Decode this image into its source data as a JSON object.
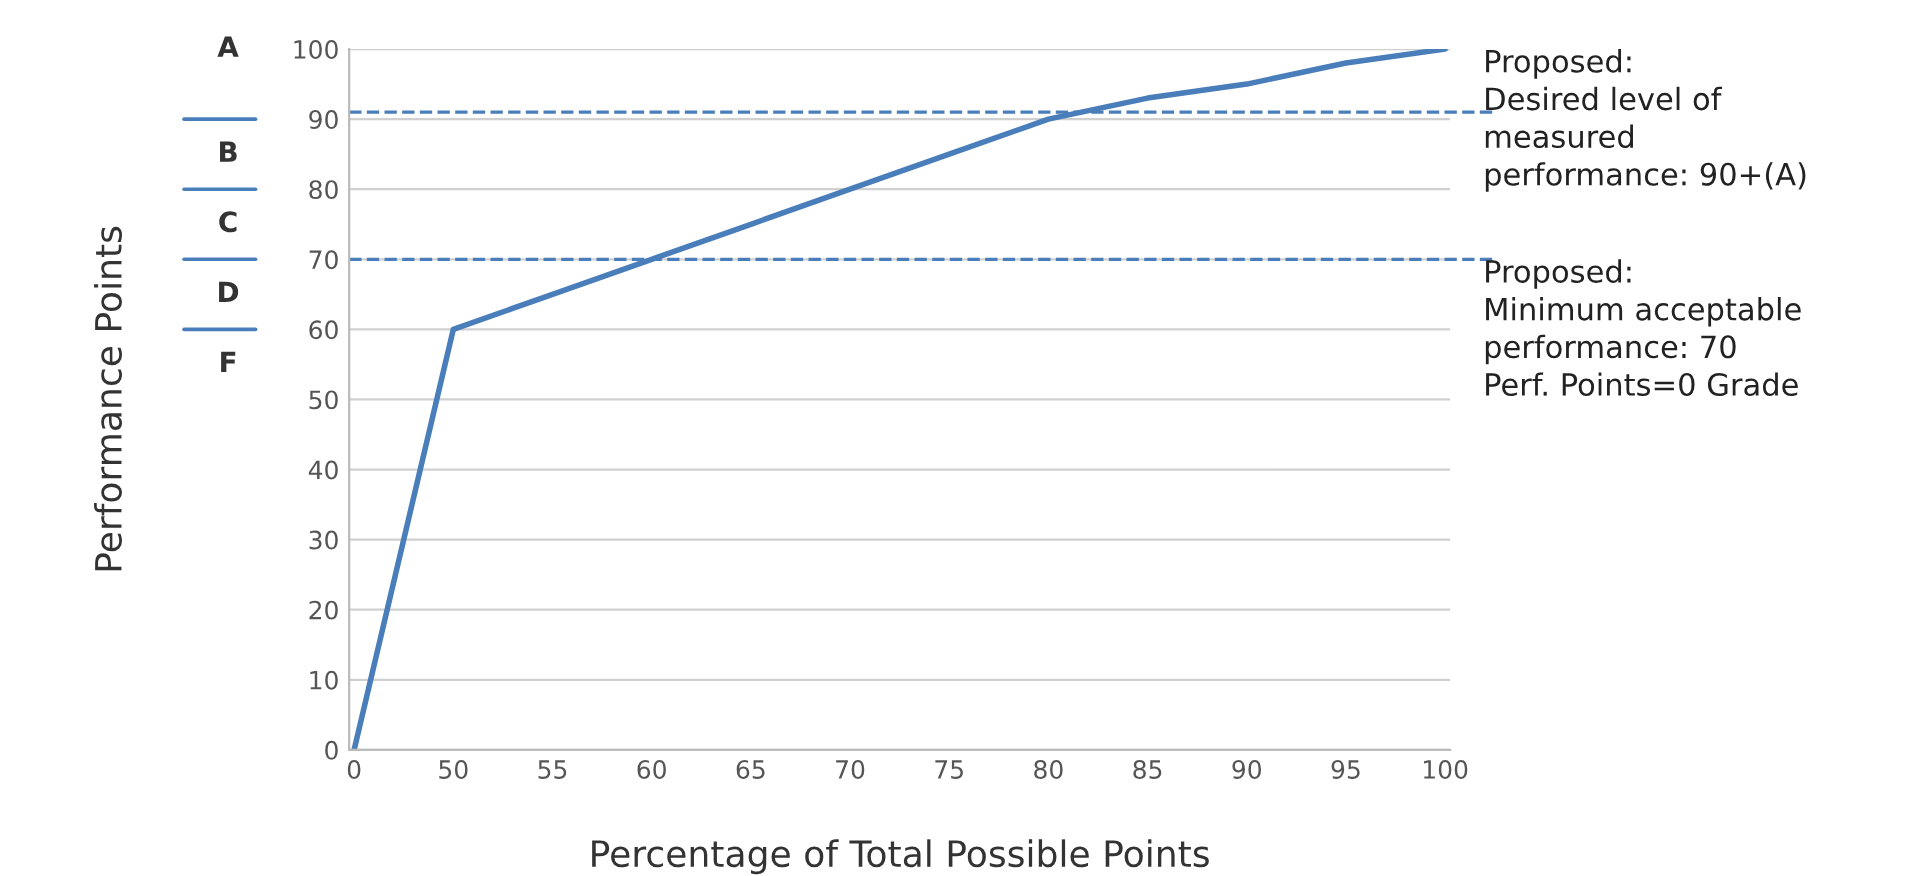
{
  "chart_data": {
    "type": "line",
    "xlabel": "Percentage of Total Possible Points",
    "ylabel": "Performance Points",
    "categories": [
      "0",
      "50",
      "55",
      "60",
      "65",
      "70",
      "75",
      "80",
      "85",
      "90",
      "95",
      "100"
    ],
    "series": [
      {
        "color": "#4a7ebb",
        "values": [
          0,
          60,
          65,
          70,
          75,
          80,
          85,
          90,
          93,
          95,
          98,
          100
        ]
      }
    ],
    "ylim": [
      0,
      100
    ],
    "yticks": [
      0,
      10,
      20,
      30,
      40,
      50,
      60,
      70,
      80,
      90,
      100
    ],
    "grid": "y",
    "marker": "none",
    "line_style": "solid",
    "ref_lines": [
      {
        "axis": "y",
        "value": 91,
        "color": "#4a7ebb",
        "line_style": "dashed"
      },
      {
        "axis": "y",
        "value": 70,
        "color": "#4a7ebb",
        "line_style": "dashed"
      }
    ],
    "annotations": [
      "A",
      "B",
      "C",
      "D",
      "F",
      "Proposed:\nDesired level of\nmeasured\nperformance: 90+(A)",
      "Proposed:\nMinimum acceptable\nperformance: 70\nPerf. Points=0 Grade"
    ]
  }
}
